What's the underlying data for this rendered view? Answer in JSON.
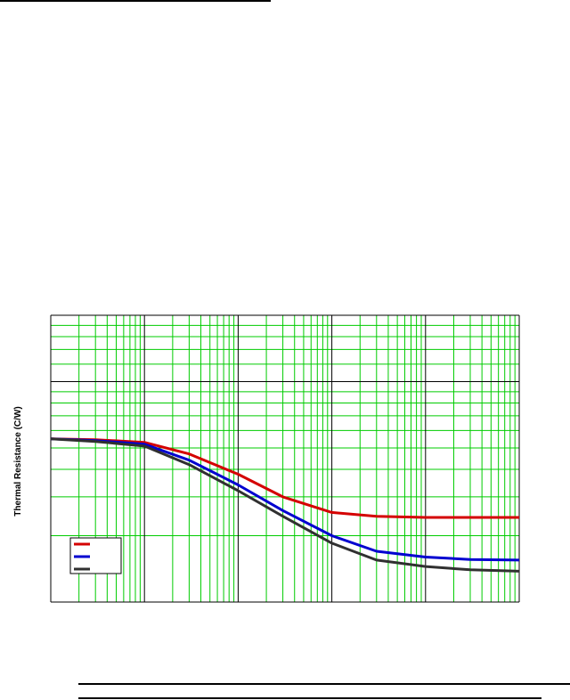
{
  "chart_data": {
    "type": "line",
    "title": "",
    "xlabel": "",
    "ylabel": "Thermal Resistance (C/W)",
    "x_scale": "log",
    "y_scale": "log",
    "xlim": [
      1,
      100000
    ],
    "ylim": [
      0.1,
      2
    ],
    "grid": true,
    "legend_position": "bottom-left",
    "colors": {
      "series": [
        "#d40000",
        "#0000d0",
        "#303030"
      ],
      "grid_minor": "#00cc00",
      "grid_major": "#000000"
    },
    "series": [
      {
        "x": [
          1,
          3,
          10,
          30,
          100,
          300,
          1000,
          3000,
          10000,
          30000,
          100000
        ],
        "values": [
          0.55,
          0.545,
          0.53,
          0.47,
          0.38,
          0.3,
          0.255,
          0.245,
          0.242,
          0.242,
          0.242
        ]
      },
      {
        "x": [
          1,
          3,
          10,
          30,
          100,
          300,
          1000,
          3000,
          10000,
          30000,
          100000
        ],
        "values": [
          0.55,
          0.54,
          0.52,
          0.44,
          0.34,
          0.26,
          0.2,
          0.17,
          0.16,
          0.156,
          0.155
        ]
      },
      {
        "x": [
          1,
          3,
          10,
          30,
          100,
          300,
          1000,
          3000,
          10000,
          30000,
          100000
        ],
        "values": [
          0.55,
          0.535,
          0.51,
          0.42,
          0.32,
          0.245,
          0.185,
          0.155,
          0.145,
          0.14,
          0.138
        ]
      }
    ]
  }
}
